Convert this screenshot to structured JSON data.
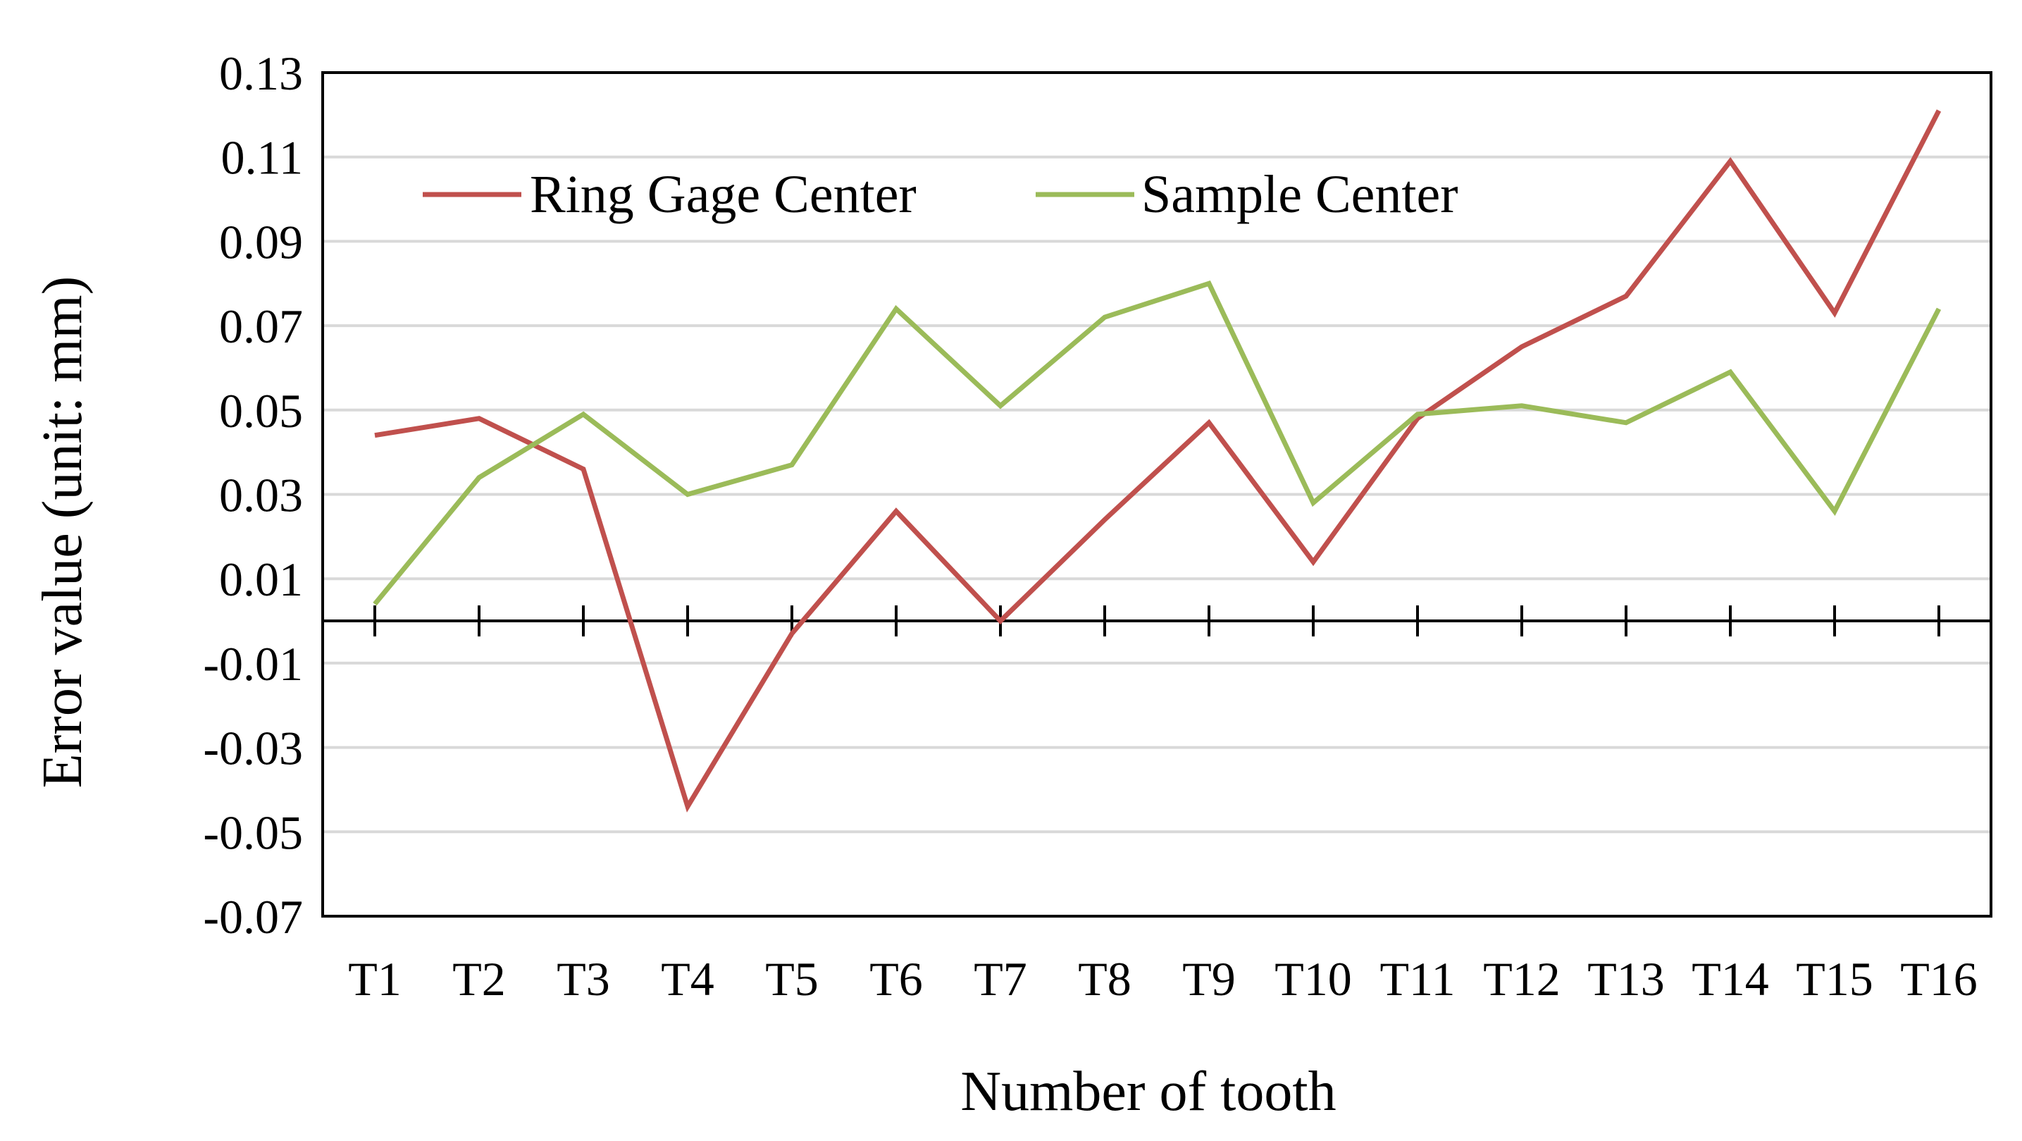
{
  "chart_data": {
    "type": "line",
    "categories": [
      "T1",
      "T2",
      "T3",
      "T4",
      "T5",
      "T6",
      "T7",
      "T8",
      "T9",
      "T10",
      "T11",
      "T12",
      "T13",
      "T14",
      "T15",
      "T16"
    ],
    "series": [
      {
        "name": "Ring Gage Center",
        "color": "#c0504d",
        "values": [
          0.044,
          0.048,
          0.036,
          -0.044,
          -0.003,
          0.026,
          0.0,
          0.024,
          0.047,
          0.014,
          0.048,
          0.065,
          0.077,
          0.109,
          0.073,
          0.121
        ]
      },
      {
        "name": "Sample Center",
        "color": "#9bbb59",
        "values": [
          0.004,
          0.034,
          0.049,
          0.03,
          0.037,
          0.074,
          0.051,
          0.072,
          0.08,
          0.028,
          0.049,
          0.051,
          0.047,
          0.059,
          0.026,
          0.074
        ]
      }
    ],
    "xlabel": "Number of tooth",
    "ylabel": "Error value (unit: mm)",
    "ylim": [
      -0.07,
      0.13
    ],
    "yticks": [
      "0.13",
      "0.11",
      "0.09",
      "0.07",
      "0.05",
      "0.03",
      "0.01",
      "-0.01",
      "-0.03",
      "-0.05",
      "-0.07"
    ],
    "grid": true,
    "legend_position": "top-left"
  }
}
